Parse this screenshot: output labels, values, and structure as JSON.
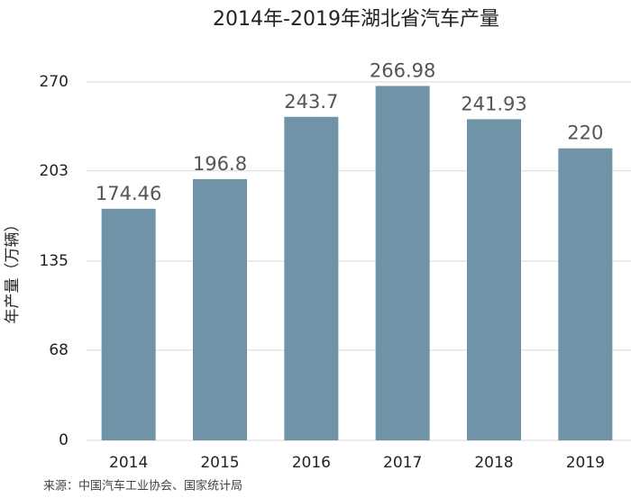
{
  "chart_data": {
    "type": "bar",
    "title": "2014年-2019年湖北省汽车产量",
    "y_label": "年产量（万辆）",
    "source": "来源：中国汽车工业协会、国家统计局",
    "categories": [
      "2014",
      "2015",
      "2016",
      "2017",
      "2018",
      "2019"
    ],
    "values": [
      174.46,
      196.8,
      243.7,
      266.98,
      241.93,
      220
    ],
    "color": "#7093a8",
    "ylim": [
      0,
      270
    ],
    "yticks": [
      0,
      68,
      135,
      203,
      270
    ],
    "grid": true
  }
}
